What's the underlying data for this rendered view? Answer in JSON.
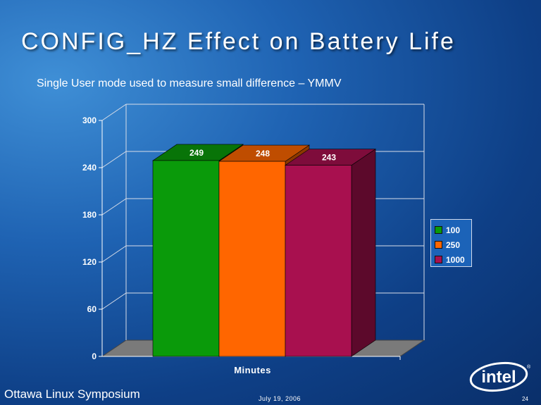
{
  "slide": {
    "title": "CONFIG_HZ Effect on Battery Life",
    "subtitle": "Single User mode used to measure small difference – YMMV",
    "footer_left": "Ottawa Linux Symposium",
    "footer_date": "July 19, 2006",
    "page_number": "24",
    "logo_text": "intel"
  },
  "chart_data": {
    "type": "bar",
    "categories": [
      "Minutes"
    ],
    "series": [
      {
        "name": "100",
        "values": [
          249
        ],
        "color": "#0a9a0a"
      },
      {
        "name": "250",
        "values": [
          248
        ],
        "color": "#ff6600"
      },
      {
        "name": "1000",
        "values": [
          243
        ],
        "color": "#a8104f"
      }
    ],
    "xlabel": "Minutes",
    "ylabel": "",
    "ylim": [
      0,
      300
    ],
    "yticks": [
      "0",
      "60",
      "120",
      "180",
      "240",
      "300"
    ],
    "grid": true,
    "legend": "right",
    "three_d": true
  }
}
